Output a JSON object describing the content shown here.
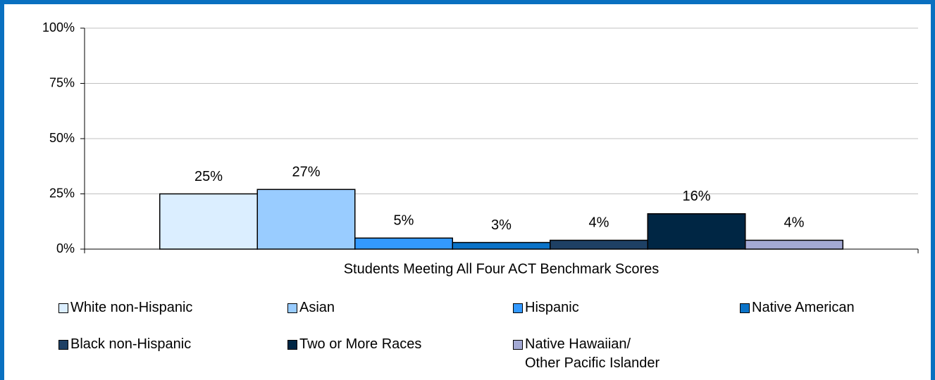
{
  "chart_data": {
    "type": "bar",
    "categories": [
      "Students Meeting All Four ACT Benchmark Scores"
    ],
    "series": [
      {
        "name": "White non-Hispanic",
        "color": "#dbeeff",
        "values": [
          25
        ],
        "value_labels": [
          "25%"
        ]
      },
      {
        "name": "Asian",
        "color": "#99ccff",
        "values": [
          27
        ],
        "value_labels": [
          "27%"
        ]
      },
      {
        "name": "Hispanic",
        "color": "#3399ff",
        "values": [
          5
        ],
        "value_labels": [
          "5%"
        ]
      },
      {
        "name": "Native American",
        "color": "#0b73c8",
        "values": [
          3
        ],
        "value_labels": [
          "3%"
        ]
      },
      {
        "name": "Black non-Hispanic",
        "color": "#1e4064",
        "values": [
          4
        ],
        "value_labels": [
          "4%"
        ]
      },
      {
        "name": "Two or More Races",
        "color": "#002644",
        "values": [
          16
        ],
        "value_labels": [
          "16%"
        ]
      },
      {
        "name": "Native Hawaiian/\nOther Pacific Islander",
        "color": "#a3a9d4",
        "values": [
          4
        ],
        "value_labels": [
          "4%"
        ]
      }
    ],
    "ylim": [
      0,
      100
    ],
    "yticks": [
      {
        "value": 0,
        "label": "0%"
      },
      {
        "value": 25,
        "label": "25%"
      },
      {
        "value": 50,
        "label": "50%"
      },
      {
        "value": 75,
        "label": "75%"
      },
      {
        "value": 100,
        "label": "100%"
      }
    ],
    "grid": true,
    "legend": "bottom"
  }
}
